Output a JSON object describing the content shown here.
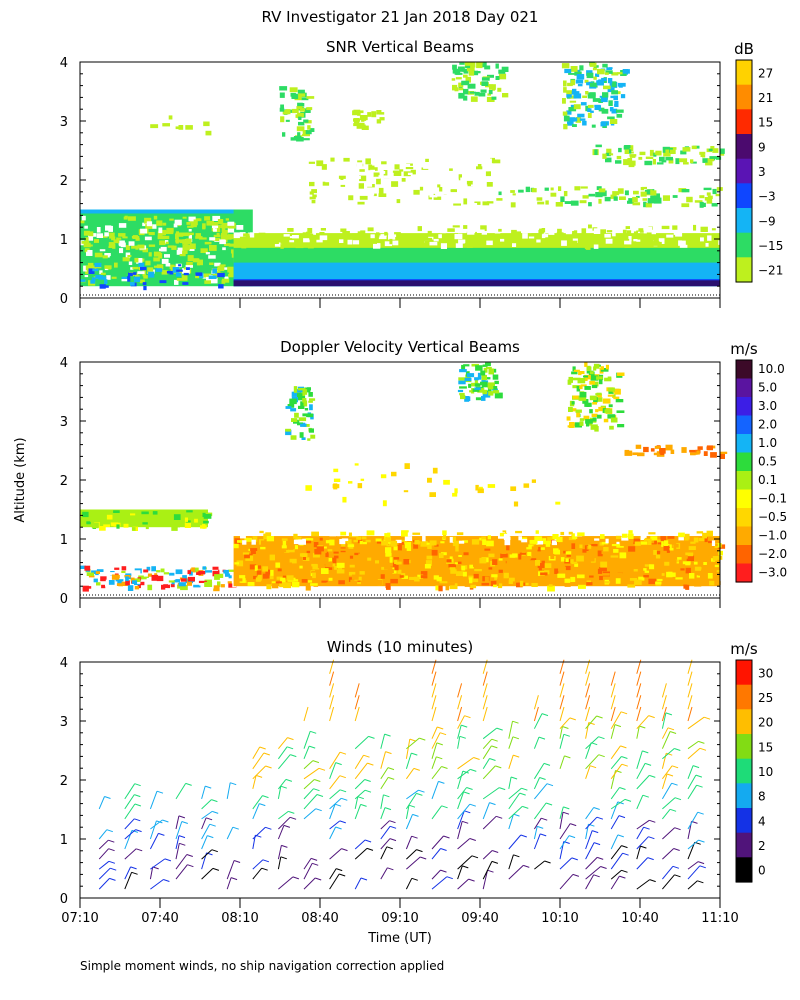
{
  "page_title": "RV Investigator  21 Jan 2018 Day 021",
  "y_axis_label": "Altitude (km)",
  "x_axis_label": "Time (UT)",
  "footnote": "Simple moment winds, no ship navigation correction applied",
  "chart_data": [
    {
      "type": "heatmap",
      "title": "SNR Vertical Beams",
      "units": "dB",
      "ylim": [
        0,
        4
      ],
      "y_ticks": [
        "0",
        "1",
        "2",
        "3",
        "4"
      ],
      "x_range": [
        "07:10",
        "11:10"
      ],
      "colorbar": {
        "labels": [
          "27",
          "21",
          "15",
          "9",
          "3",
          "−3",
          "−9",
          "−15",
          "−21"
        ],
        "colors": [
          "#ffd200",
          "#ff8c00",
          "#ff2a00",
          "#4b0a6e",
          "#5a14b4",
          "#0f46ff",
          "#14b4f5",
          "#2ddc64",
          "#bef01e"
        ]
      }
    },
    {
      "type": "heatmap",
      "title": "Doppler Velocity Vertical Beams",
      "units": "m/s",
      "ylim": [
        0,
        4
      ],
      "y_ticks": [
        "0",
        "1",
        "2",
        "3",
        "4"
      ],
      "x_range": [
        "07:10",
        "11:10"
      ],
      "colorbar": {
        "labels": [
          "10.0",
          "5.0",
          "3.0",
          "2.0",
          "1.0",
          "0.5",
          "0.1",
          "−0.1",
          "−0.5",
          "−1.0",
          "−2.0",
          "−3.0"
        ],
        "colors": [
          "#3c0a28",
          "#5a14a0",
          "#3c1ee6",
          "#1464ff",
          "#14b4f5",
          "#2ddc3c",
          "#aaf014",
          "#ffff00",
          "#ffd700",
          "#ffaa00",
          "#ff6400",
          "#ff1e1e"
        ]
      }
    },
    {
      "type": "scatter",
      "title": "Winds (10 minutes)",
      "units": "m/s",
      "ylim": [
        0,
        4
      ],
      "y_ticks": [
        "0",
        "1",
        "2",
        "3",
        "4"
      ],
      "x_ticks": [
        "07:10",
        "07:40",
        "08:10",
        "08:40",
        "09:10",
        "09:40",
        "10:10",
        "10:40",
        "11:10"
      ],
      "colorbar": {
        "labels": [
          "30",
          "25",
          "20",
          "15",
          "10",
          "8",
          "4",
          "2",
          "0"
        ],
        "colors": [
          "#ff1400",
          "#ff7800",
          "#ffbe00",
          "#82dc14",
          "#1edc78",
          "#14aaf0",
          "#1432e6",
          "#50147a",
          "#000000"
        ]
      }
    }
  ]
}
